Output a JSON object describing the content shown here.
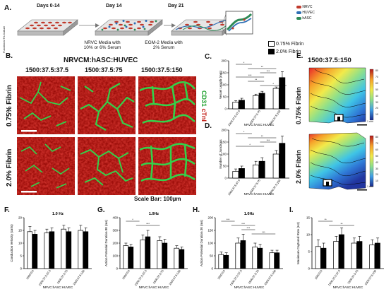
{
  "panelA": {
    "label": "A.",
    "side_label": "Functional Tri-Culture",
    "timepoints": [
      "Days 0-14",
      "Day 14",
      "Day 21"
    ],
    "captions": [
      [
        "NRVC Media with",
        "10% or 6% Serum"
      ],
      [
        "EGM-2 Media with",
        "2% Serum"
      ]
    ],
    "legend": [
      {
        "label": "NRVC",
        "color": "#c0392b"
      },
      {
        "label": "HUVEC",
        "color": "#2e6fb5"
      },
      {
        "label": "hASC",
        "color": "#2e8b57"
      }
    ]
  },
  "panelB": {
    "label": "B.",
    "title": "NRVCM:hASC:HUVEC",
    "columns": [
      "1500:37.5:37.5",
      "1500:37.5:75",
      "1500:37.5:150"
    ],
    "rows": [
      "0.75% Fibrin",
      "2.0% Fibrin"
    ],
    "stain_green": "CD31",
    "stain_red": "cTnI",
    "scale_bar": "Scale Bar: 100µm"
  },
  "panelE": {
    "label": "E.",
    "title": "1500:37.5:150",
    "rows": [
      "0.75% Fibrin",
      "2.0% Fibrin"
    ],
    "colorbar_ticks": [
      "80",
      "70",
      "60",
      "50",
      "40",
      "30",
      "20",
      "10"
    ],
    "scale": "1 mm"
  },
  "legend_CD": {
    "items": [
      {
        "label": "0.75% Fibrin",
        "color": "#ffffff"
      },
      {
        "label": "2.0% Fibrin",
        "color": "#000000"
      }
    ]
  },
  "chart_data": [
    {
      "panel": "C.",
      "type": "bar",
      "ylabel": "Vessel Length (mm)",
      "xlabel": "NRVC:hASC:HUVEC",
      "categories": [
        "1500:37.5:37.5",
        "1500:37.5:75",
        "1500:37.5:150"
      ],
      "yticks": [
        0,
        50,
        100,
        150,
        200
      ],
      "ylim": [
        0,
        200
      ],
      "series": [
        {
          "name": "0.75% Fibrin",
          "values": [
            28,
            55,
            85
          ],
          "errors": [
            6,
            6,
            6
          ]
        },
        {
          "name": "2.0% Fibrin",
          "values": [
            36,
            65,
            130
          ],
          "errors": [
            8,
            8,
            25
          ]
        }
      ],
      "annotations": [
        "*",
        "**",
        "***",
        "***",
        "**",
        "*"
      ]
    },
    {
      "panel": "D.",
      "type": "bar",
      "ylabel": "Number of Junctions",
      "xlabel": "NRVC:hASC:HUVEC",
      "categories": [
        "1500:37.5:37.5",
        "1500:37.5:75",
        "1500:37.5:150"
      ],
      "yticks": [
        0,
        50,
        100,
        150,
        200
      ],
      "ylim": [
        0,
        200
      ],
      "series": [
        {
          "name": "0.75% Fibrin",
          "values": [
            28,
            55,
            100
          ],
          "errors": [
            10,
            15,
            15
          ]
        },
        {
          "name": "2.0% Fibrin",
          "values": [
            40,
            70,
            145
          ],
          "errors": [
            10,
            15,
            30
          ]
        }
      ],
      "annotations": [
        "*",
        "**",
        "***",
        "*"
      ]
    },
    {
      "panel": "F.",
      "type": "bar",
      "title": "1.0 Hz",
      "ylabel": "Conduction Velocity (cm/s)",
      "xlabel": "NRVC:hASC:HUVEC",
      "categories": [
        "1500:0:0",
        "1500:37.5:37.5",
        "1500:37.5:75",
        "1500:37.5:150"
      ],
      "yticks": [
        0,
        5,
        10,
        15,
        20
      ],
      "ylim": [
        0,
        20
      ],
      "series": [
        {
          "name": "0.75% Fibrin",
          "values": [
            14.5,
            14,
            15.5,
            15
          ],
          "errors": [
            2,
            1.5,
            1.5,
            2
          ]
        },
        {
          "name": "2.0% Fibrin",
          "values": [
            13.5,
            14.5,
            14.5,
            14.5
          ],
          "errors": [
            1.5,
            1.5,
            1.5,
            1.5
          ]
        }
      ]
    },
    {
      "panel": "G.",
      "type": "bar",
      "title": "1.0Hz",
      "ylabel": "Action Potential Duration 80 (ms)",
      "xlabel": "NRVC:hASC:HUVEC",
      "categories": [
        "1500:0:0",
        "1500:37.5:37.5",
        "1500:37.5:75",
        "1500:37.5:150"
      ],
      "yticks": [
        0,
        100,
        200,
        300,
        400
      ],
      "ylim": [
        0,
        400
      ],
      "series": [
        {
          "name": "0.75% Fibrin",
          "values": [
            180,
            225,
            220,
            160
          ],
          "errors": [
            20,
            40,
            30,
            20
          ]
        },
        {
          "name": "2.0% Fibrin",
          "values": [
            170,
            250,
            200,
            150
          ],
          "errors": [
            20,
            50,
            30,
            20
          ]
        }
      ],
      "annotations": [
        "*",
        "***"
      ]
    },
    {
      "panel": "H.",
      "type": "bar",
      "title": "1.0Hz",
      "ylabel": "Action Potential Duration 30 (ms)",
      "xlabel": "NRVC:hASC:HUVEC",
      "categories": [
        "1500:0:0",
        "1500:37.5:37.5",
        "1500:37.5:75",
        "1500:37.5:150"
      ],
      "yticks": [
        0,
        50,
        100,
        150,
        200
      ],
      "ylim": [
        0,
        200
      ],
      "series": [
        {
          "name": "0.75% Fibrin",
          "values": [
            55,
            100,
            85,
            62
          ],
          "errors": [
            10,
            20,
            15,
            10
          ]
        },
        {
          "name": "2.0% Fibrin",
          "values": [
            52,
            110,
            80,
            62
          ],
          "errors": [
            10,
            25,
            15,
            10
          ]
        }
      ],
      "annotations": [
        "***",
        "***",
        "***",
        "***"
      ]
    },
    {
      "panel": "I.",
      "type": "bar",
      "ylabel": "Maximum Captured Rate (Hz)",
      "xlabel": "NRVC:hASC:HUVEC",
      "categories": [
        "1500:0:0",
        "1500:37.5:37.5",
        "1500:37.5:75",
        "1500:37.5:150"
      ],
      "yticks": [
        0,
        5,
        10,
        15
      ],
      "ylim": [
        0,
        15
      ],
      "series": [
        {
          "name": "0.75% Fibrin",
          "values": [
            6.5,
            8,
            7.5,
            7
          ],
          "errors": [
            2,
            1.5,
            1.5,
            1.5
          ]
        },
        {
          "name": "2.0% Fibrin",
          "values": [
            6,
            10,
            8,
            7.5
          ],
          "errors": [
            1.5,
            2,
            1.5,
            1.5
          ]
        }
      ],
      "annotations": [
        "**",
        "**"
      ]
    }
  ]
}
